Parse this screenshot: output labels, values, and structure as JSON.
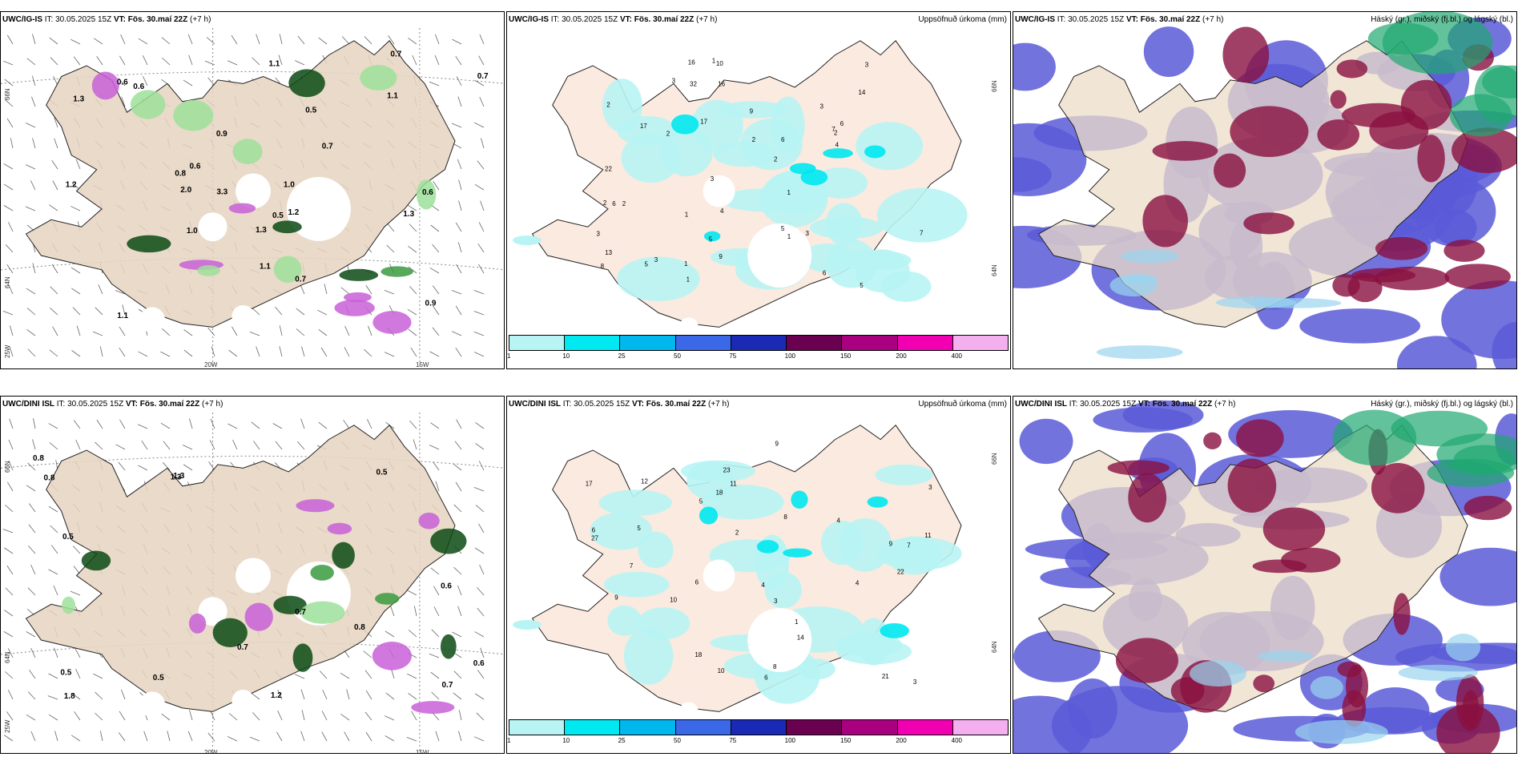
{
  "rows": [
    {
      "model": "UWC/IG-IS",
      "it_label": "IT:",
      "it_value": "30.05.2025 15Z",
      "vt_label": "VT:",
      "vt_value": "Fös. 30.maí 22Z",
      "lead": "(+7 h)"
    },
    {
      "model": "UWC/DINI ISL",
      "it_label": "IT:",
      "it_value": "30.05.2025 15Z",
      "vt_label": "VT:",
      "vt_value": "Fös. 30.maí 22Z",
      "lead": "(+7 h)"
    }
  ],
  "precip_title": "Uppsöfnuð úrkoma (mm)",
  "cloud_title": "Háský (gr.), miðský (fj.bl.) og lágský (bl.)",
  "axis": {
    "lat_66": "66N",
    "lat_64": "64N",
    "lon_25": "25W",
    "lon_20": "20W",
    "lon_15": "15W"
  },
  "colorbar": {
    "ticks": [
      "1",
      "10",
      "25",
      "50",
      "75",
      "100",
      "150",
      "200",
      "400"
    ],
    "colors": [
      "#b8f4f4",
      "#00e8f0",
      "#00b8ee",
      "#3a68e6",
      "#1a2ab4",
      "#6a0050",
      "#a8007e",
      "#f000b0",
      "#f4b0ee"
    ]
  },
  "precip_numbers_top": [
    "5",
    "2",
    "3",
    "5",
    "1",
    "6",
    "2",
    "1",
    "2",
    "1",
    "1",
    "2",
    "3",
    "14",
    "9",
    "7",
    "5",
    "6",
    "6",
    "10",
    "3",
    "22",
    "17",
    "16",
    "2",
    "8",
    "5",
    "13",
    "16",
    "3",
    "4",
    "2",
    "3",
    "1",
    "6",
    "7",
    "17",
    "32",
    "9",
    "3",
    "2",
    "4",
    "1",
    "3"
  ],
  "precip_numbers_bottom": [
    "4",
    "6",
    "9",
    "7",
    "5",
    "3",
    "9",
    "23",
    "11",
    "4",
    "8",
    "5",
    "18",
    "12",
    "7",
    "10",
    "9",
    "8",
    "21",
    "17",
    "18",
    "11",
    "3",
    "4",
    "6",
    "14",
    "27",
    "22",
    "10",
    "6",
    "2",
    "1",
    "3"
  ],
  "wind_labels_top": [
    "3.3",
    "1.1",
    "0.7",
    "1.2",
    "1.3",
    "0.7",
    "1.3",
    "1.0",
    "0.5",
    "1.1",
    "1.2",
    "0.9",
    "0.7",
    "0.6",
    "0.5",
    "0.6",
    "1.1",
    "0.8",
    "1.0",
    "0.9",
    "1.3",
    "2.0",
    "1.1",
    "0.6",
    "0.6",
    "0.7"
  ],
  "wind_labels_bottom": [
    "0.7",
    "1.8",
    "1.3",
    "1.2",
    "0.8",
    "0.8",
    "0.7",
    "0.6",
    "0.5",
    "0.5",
    "0.6",
    "0.5",
    "1.3",
    "0.5",
    "0.7",
    "0.8"
  ]
}
